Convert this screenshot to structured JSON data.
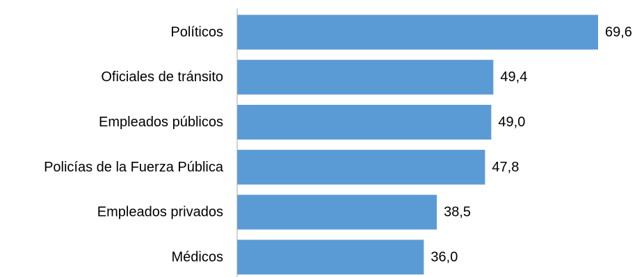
{
  "chart_data": {
    "type": "bar",
    "orientation": "horizontal",
    "categories": [
      "Políticos",
      "Oficiales de tránsito",
      "Empleados públicos",
      "Policías de la Fuerza Pública",
      "Empleados privados",
      "Médicos"
    ],
    "values": [
      69.6,
      49.4,
      49.0,
      47.8,
      38.5,
      36.0
    ],
    "value_labels": [
      "69,6",
      "49,4",
      "49,0",
      "47,8",
      "38,5",
      "36,0"
    ],
    "title": "",
    "xlabel": "",
    "ylabel": "",
    "xlim": [
      0,
      70
    ],
    "grid": false,
    "legend": "none",
    "bar_color": "#5b9bd5",
    "axis_color": "#a6a6a6"
  }
}
